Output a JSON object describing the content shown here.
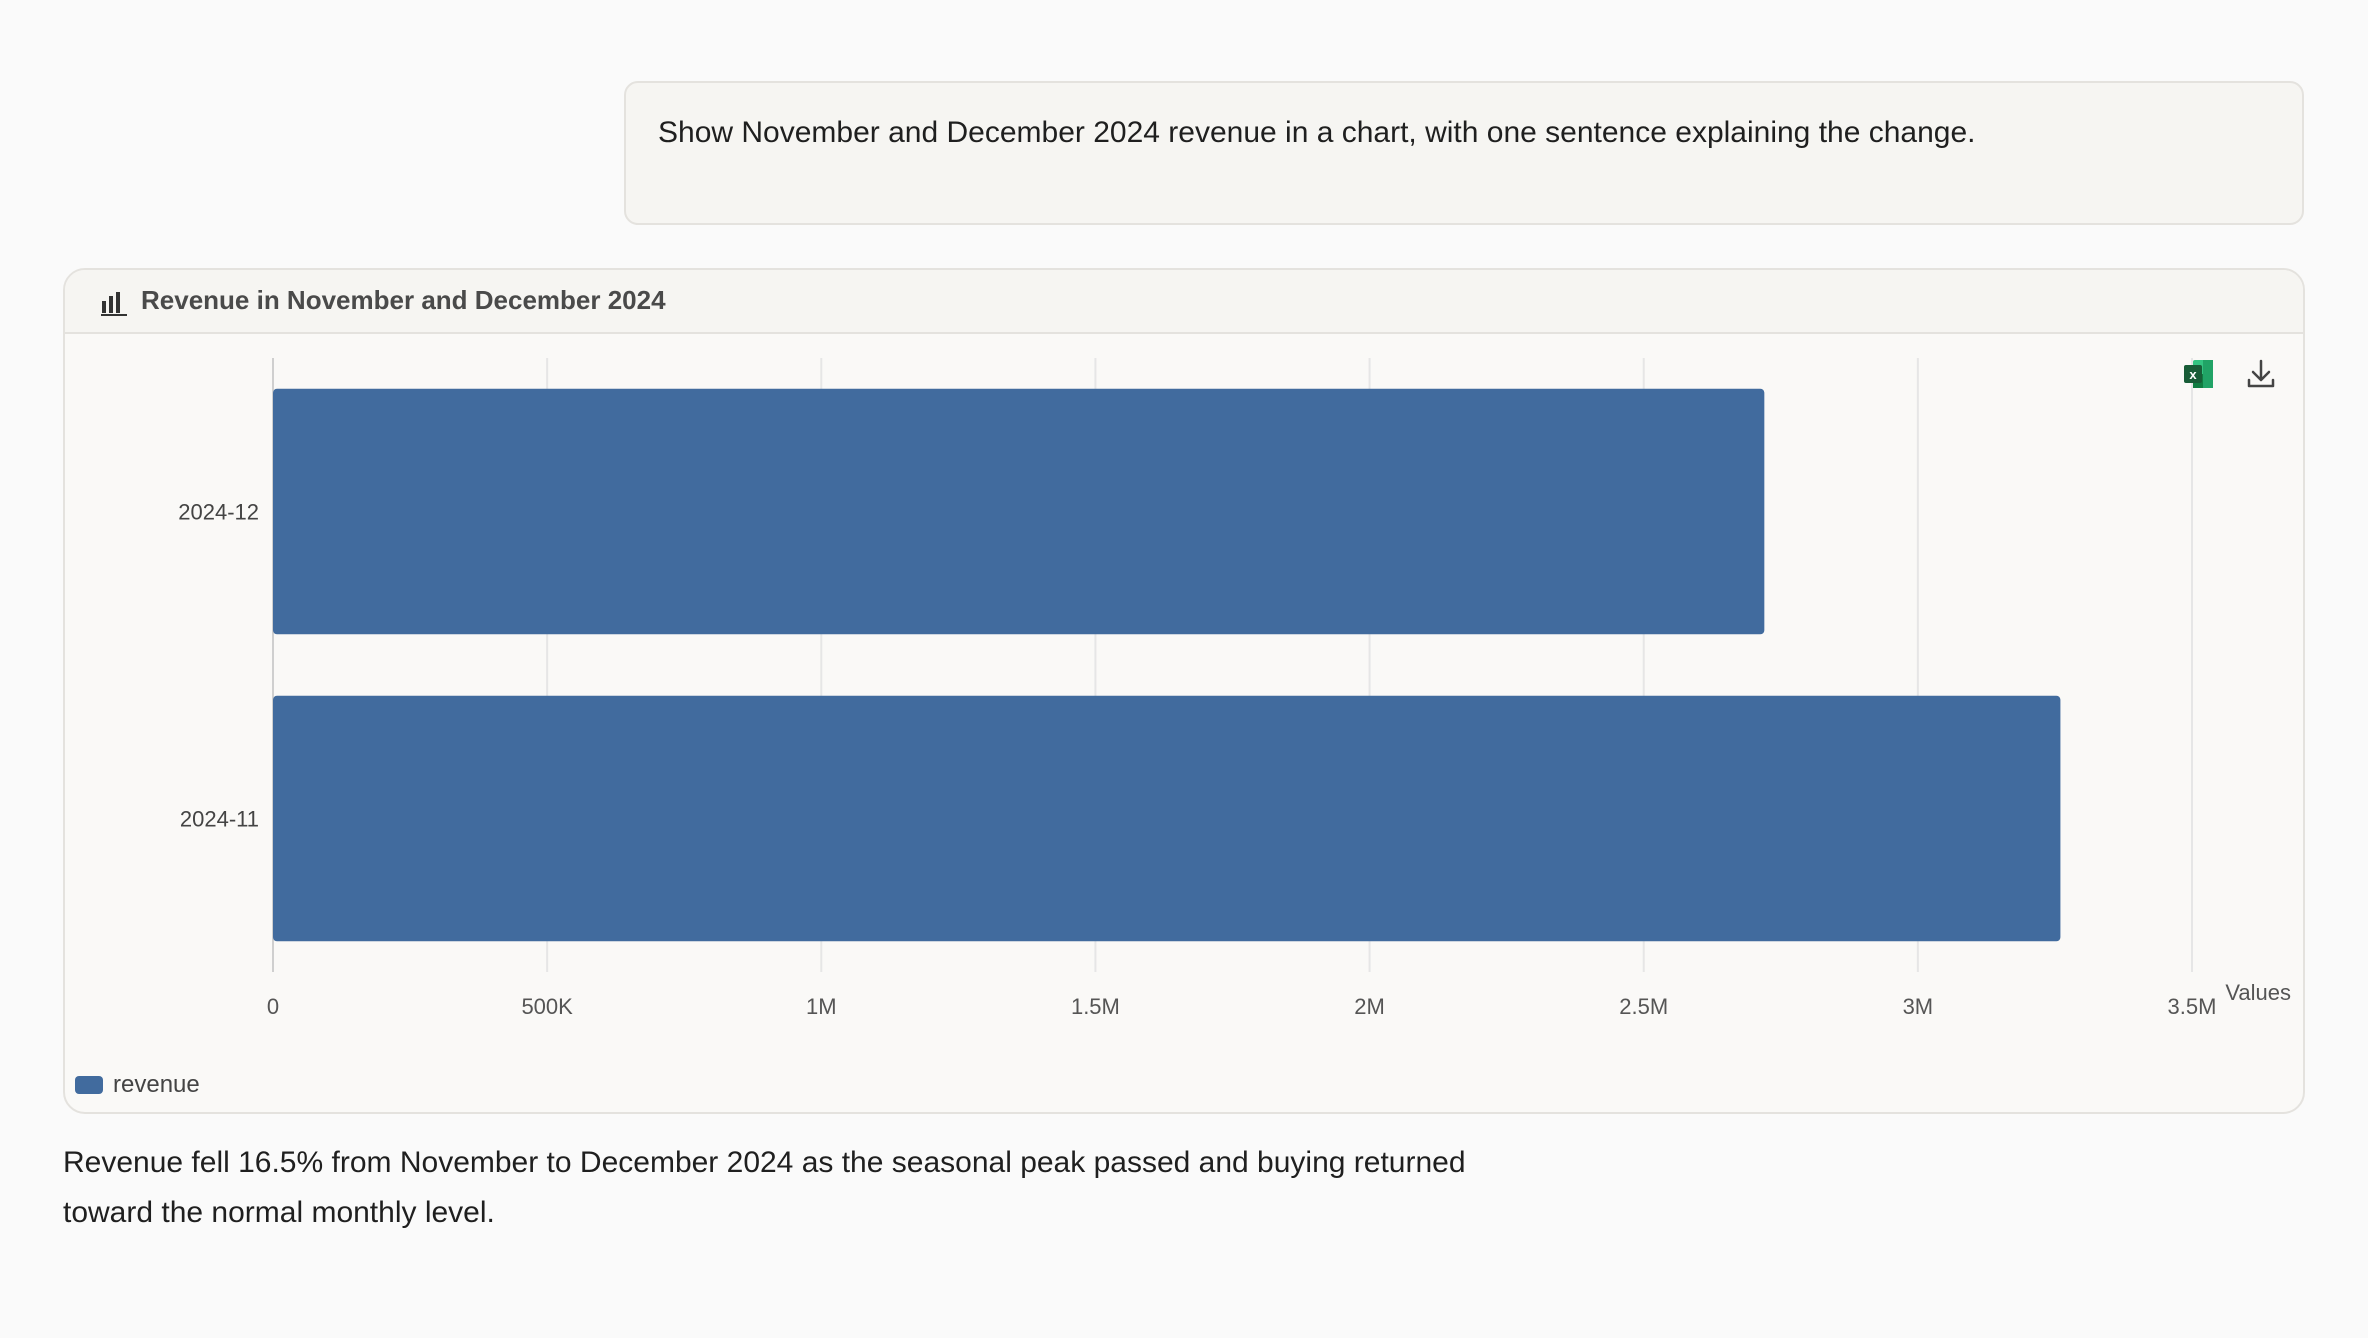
{
  "prompt": {
    "text": "Show November and December 2024 revenue in a chart, with one sentence explaining the change."
  },
  "chart_card": {
    "title": "Revenue in November and December 2024",
    "icons": [
      "bar-chart-icon",
      "excel-icon",
      "download-icon"
    ]
  },
  "chart_data": {
    "type": "bar",
    "orientation": "horizontal",
    "categories": [
      "2024-12",
      "2024-11"
    ],
    "series": [
      {
        "name": "revenue",
        "values": [
          2720000,
          3260000
        ],
        "color": "#416b9e"
      }
    ],
    "x_axis": {
      "label": "Values",
      "range": [
        0,
        3500000
      ],
      "ticks": [
        0,
        500000,
        1000000,
        1500000,
        2000000,
        2500000,
        3000000,
        3500000
      ],
      "tick_labels": [
        "0",
        "500K",
        "1M",
        "1.5M",
        "2M",
        "2.5M",
        "3M",
        "3.5M"
      ]
    },
    "grid": true,
    "legend": {
      "position": "bottom-left"
    }
  },
  "answer": {
    "line1": "Revenue fell 16.5% from November to December 2024 as the seasonal peak passed and buying returned",
    "line2": "toward the normal monthly level."
  }
}
